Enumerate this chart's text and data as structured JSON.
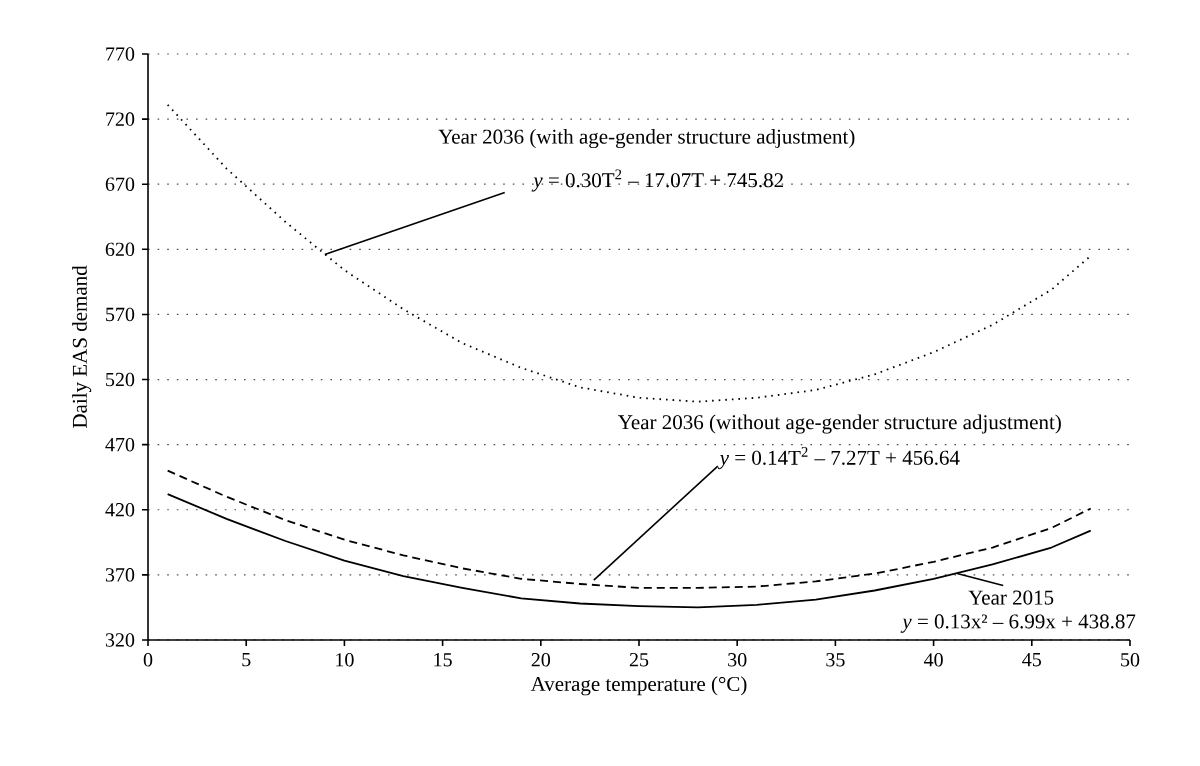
{
  "chart_data": {
    "type": "line",
    "xlabel": "Average temperature (°C)",
    "ylabel": "Daily EAS demand",
    "x": [
      1,
      4,
      7,
      10,
      13,
      16,
      19,
      22,
      25,
      28,
      31,
      34,
      37,
      40,
      43,
      46,
      48
    ],
    "xlim": [
      0,
      50
    ],
    "xticks": [
      0,
      5,
      10,
      15,
      20,
      25,
      30,
      35,
      40,
      45,
      50
    ],
    "ylim": [
      320,
      770
    ],
    "yticks": [
      320,
      370,
      420,
      470,
      520,
      570,
      620,
      670,
      720,
      770
    ],
    "grid": "y",
    "series": [
      {
        "color": "#000000",
        "line_style": "dotted",
        "values": [
          731,
          682,
          641,
          604,
          574,
          548,
          529,
          514,
          506,
          503,
          506,
          512,
          524,
          541,
          562,
          589,
          615
        ]
      },
      {
        "color": "#000000",
        "line_style": "dashed",
        "values": [
          450,
          430,
          412,
          397,
          385,
          375,
          367,
          363,
          360,
          360,
          361,
          365,
          371,
          380,
          391,
          406,
          421
        ]
      },
      {
        "color": "#000000",
        "line_style": "solid",
        "values": [
          432,
          413,
          396,
          381,
          369,
          360,
          352,
          348,
          346,
          345,
          347,
          351,
          358,
          367,
          378,
          391,
          404
        ]
      }
    ],
    "annotations": [
      {
        "text": "*y* = 0.30T$^{2}$ – 17.07T + 745.82",
        "x": 9,
        "y": 616
      },
      {
        "text": "*y* = 0.14T$^{2}$ – 7.27T + 456.64",
        "x": 22.7,
        "y": 366
      },
      {
        "text": "*y* = 0.13x² – 6.99x + 438.87",
        "x": 41.2,
        "y": 371
      },
      "Year 2036 (with age-gender structure adjustment)",
      "Year 2036 (without age-gender structure adjustment)",
      "Year 2015"
    ]
  }
}
